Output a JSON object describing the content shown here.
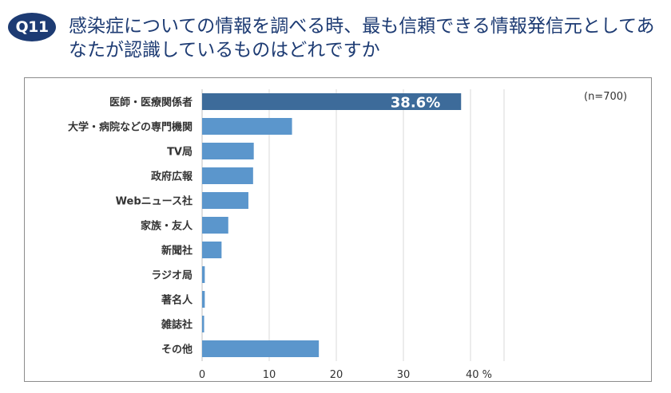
{
  "header": {
    "badge": "Q11",
    "question": "感染症についての情報を調べる時、最も信頼できる情報発信元としてあなたが認識しているものはどれですか"
  },
  "chart_data": {
    "type": "bar",
    "orientation": "horizontal",
    "categories": [
      "医師・医療関係者",
      "大学・病院などの専門機関",
      "TV局",
      "政府広報",
      "Webニュース社",
      "家族・友人",
      "新聞社",
      "ラジオ局",
      "著名人",
      "雑誌社",
      "その他"
    ],
    "values": [
      38.6,
      13.4,
      7.7,
      7.6,
      6.9,
      3.9,
      2.9,
      0.4,
      0.4,
      0.3,
      17.4
    ],
    "data_labels": [
      "38.6%",
      "",
      "",
      "",
      "",
      "",
      "",
      "",
      "",
      "",
      ""
    ],
    "x_ticks": [
      "0",
      "10",
      "20",
      "30",
      "40 %"
    ],
    "xlim": [
      0,
      45
    ],
    "sample_note": "(n=700)",
    "grid": true,
    "colors": {
      "highlight": "#3d6b9a",
      "bar": "#5b96cc",
      "grid": "#d9d9d9",
      "axis": "#bfbfbf"
    }
  }
}
